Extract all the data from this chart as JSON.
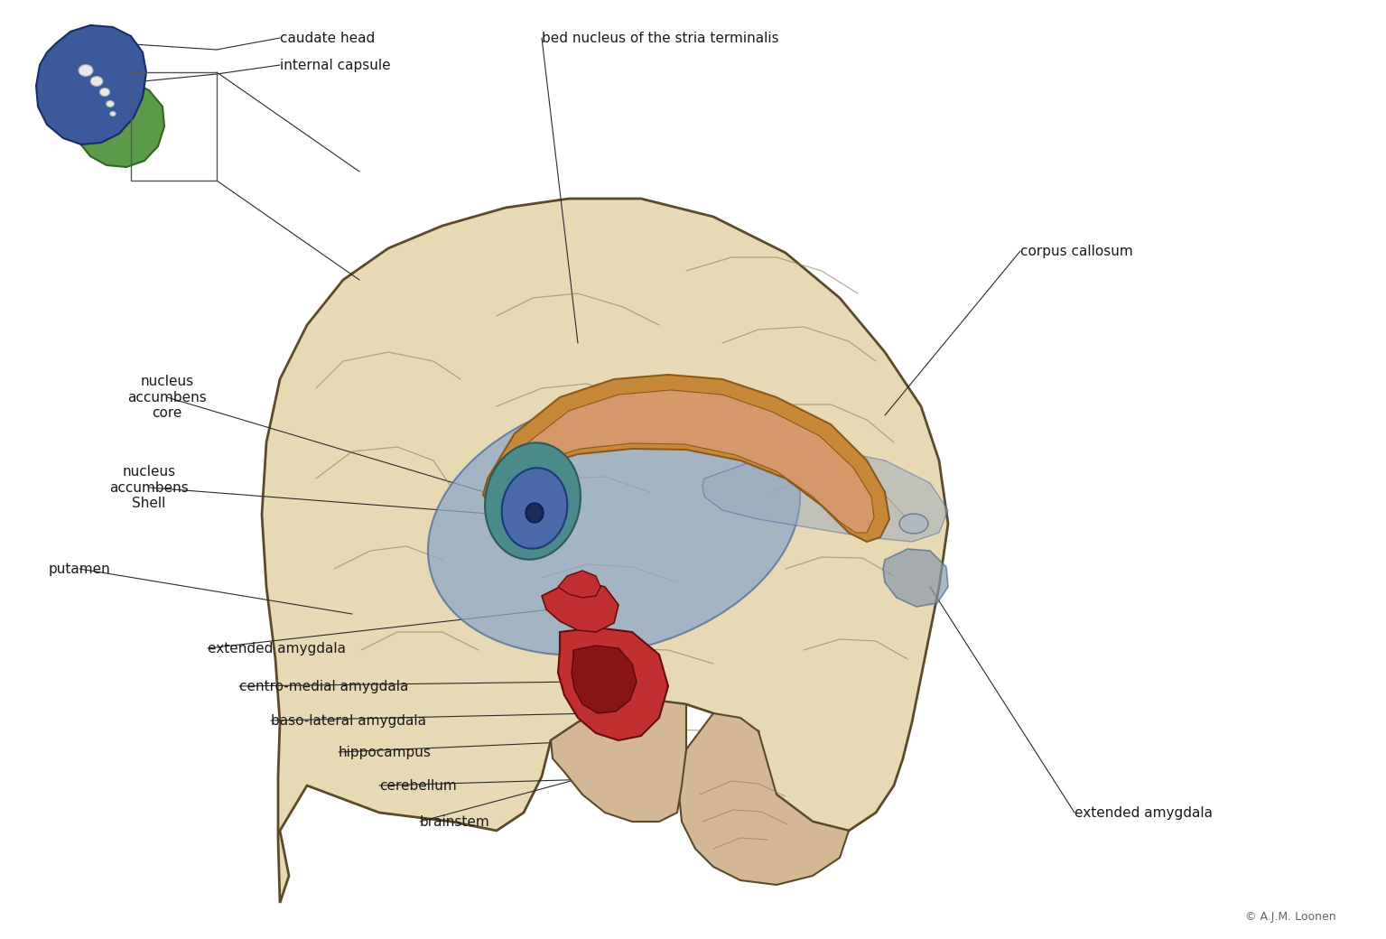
{
  "background_color": "#ffffff",
  "brain_color": "#e8d9b5",
  "brain_outline_color": "#5a4a2a",
  "striatum_color": "#8fa8c8",
  "caudate_blue": "#3a5a9c",
  "putamen_green": "#5a9a4a",
  "nucleus_acc_shell_teal": "#4a8a8a",
  "nucleus_acc_core_blue": "#4a6aaa",
  "amygdala_red": "#c03030",
  "brainstem_color": "#d4b896",
  "cerebellum_color": "#d4b896",
  "line_color": "#2a2a2a",
  "text_color": "#1a1a1a",
  "copyright_color": "#666666",
  "labels": {
    "caudate_head": "caudate head",
    "internal_capsule": "internal capsule",
    "bed_nucleus": "bed nucleus of the stria terminalis",
    "corpus_callosum": "corpus callosum",
    "nucleus_acc_core": "nucleus\naccumbens\ncore",
    "nucleus_acc_shell": "nucleus\naccumbens\nShell",
    "putamen": "putamen",
    "extended_amygdala_left": "extended amygdala",
    "centro_medial": "centro-medial amygdala",
    "baso_lateral": "baso-lateral amygdala",
    "hippocampus": "hippocampus",
    "cerebellum": "cerebellum",
    "brainstem": "brainstem",
    "extended_amygdala_right": "extended amygdala",
    "copyright": "© A.J.M. Loonen"
  },
  "fontsize_main": 11,
  "fontsize_copyright": 9
}
